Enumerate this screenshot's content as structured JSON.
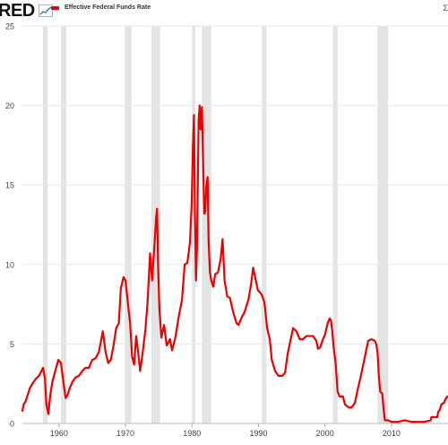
{
  "header": {
    "logo_text": "RED",
    "corner_text": "Σ"
  },
  "colors": {
    "series": "#ee0000",
    "recession": "#e4e4e4",
    "grid": "#e8e8e8",
    "axis_text": "#444444"
  },
  "chart_data": {
    "type": "line",
    "title": "",
    "xlabel": "",
    "ylabel": "",
    "xlim": [
      1954.5,
      2018.5
    ],
    "ylim": [
      0,
      25
    ],
    "yticks": [
      0,
      5,
      10,
      15,
      20,
      25
    ],
    "xticks": [
      1960,
      1970,
      1980,
      1990,
      2000,
      2010
    ],
    "grid": true,
    "legend_placement": "top-left",
    "recessions": [
      [
        1957.6,
        1958.3
      ],
      [
        1960.3,
        1961.1
      ],
      [
        1969.9,
        1970.9
      ],
      [
        1973.9,
        1975.2
      ],
      [
        1980.0,
        1980.5
      ],
      [
        1981.5,
        1982.9
      ],
      [
        1990.5,
        1991.2
      ],
      [
        2001.2,
        2001.9
      ],
      [
        2007.9,
        2009.5
      ]
    ],
    "series": [
      {
        "name": "Effective Federal Funds Rate",
        "points": [
          [
            1954.5,
            0.8
          ],
          [
            1954.7,
            1.2
          ],
          [
            1955.0,
            1.4
          ],
          [
            1955.3,
            1.8
          ],
          [
            1955.6,
            2.2
          ],
          [
            1956.0,
            2.5
          ],
          [
            1956.5,
            2.8
          ],
          [
            1957.0,
            3.0
          ],
          [
            1957.6,
            3.5
          ],
          [
            1957.9,
            2.8
          ],
          [
            1958.1,
            1.2
          ],
          [
            1958.4,
            0.6
          ],
          [
            1958.7,
            1.8
          ],
          [
            1959.0,
            2.6
          ],
          [
            1959.5,
            3.4
          ],
          [
            1959.9,
            4.0
          ],
          [
            1960.3,
            3.8
          ],
          [
            1960.7,
            2.5
          ],
          [
            1961.0,
            1.6
          ],
          [
            1961.3,
            1.8
          ],
          [
            1961.6,
            2.2
          ],
          [
            1962.0,
            2.6
          ],
          [
            1962.5,
            2.9
          ],
          [
            1963.0,
            3.0
          ],
          [
            1963.5,
            3.3
          ],
          [
            1964.0,
            3.5
          ],
          [
            1964.5,
            3.5
          ],
          [
            1965.0,
            4.0
          ],
          [
            1965.5,
            4.1
          ],
          [
            1966.0,
            4.5
          ],
          [
            1966.6,
            5.8
          ],
          [
            1967.0,
            4.5
          ],
          [
            1967.4,
            3.8
          ],
          [
            1967.8,
            4.0
          ],
          [
            1968.2,
            4.9
          ],
          [
            1968.6,
            6.0
          ],
          [
            1969.0,
            6.3
          ],
          [
            1969.3,
            8.5
          ],
          [
            1969.7,
            9.2
          ],
          [
            1970.0,
            9.0
          ],
          [
            1970.3,
            7.8
          ],
          [
            1970.7,
            6.3
          ],
          [
            1971.0,
            4.2
          ],
          [
            1971.3,
            3.7
          ],
          [
            1971.6,
            5.5
          ],
          [
            1971.9,
            4.5
          ],
          [
            1972.2,
            3.3
          ],
          [
            1972.6,
            4.5
          ],
          [
            1973.0,
            5.9
          ],
          [
            1973.3,
            7.5
          ],
          [
            1973.7,
            10.7
          ],
          [
            1974.0,
            9.0
          ],
          [
            1974.4,
            11.5
          ],
          [
            1974.6,
            12.9
          ],
          [
            1974.75,
            13.5
          ],
          [
            1974.9,
            10.0
          ],
          [
            1975.1,
            7.2
          ],
          [
            1975.4,
            5.4
          ],
          [
            1975.8,
            6.2
          ],
          [
            1976.2,
            4.9
          ],
          [
            1976.7,
            5.3
          ],
          [
            1977.0,
            4.6
          ],
          [
            1977.5,
            5.4
          ],
          [
            1978.0,
            6.7
          ],
          [
            1978.5,
            7.8
          ],
          [
            1978.9,
            10.0
          ],
          [
            1979.3,
            10.1
          ],
          [
            1979.7,
            11.4
          ],
          [
            1979.95,
            13.8
          ],
          [
            1980.15,
            17.6
          ],
          [
            1980.3,
            19.4
          ],
          [
            1980.45,
            13.2
          ],
          [
            1980.6,
            9.0
          ],
          [
            1980.75,
            11.0
          ],
          [
            1980.9,
            15.9
          ],
          [
            1981.0,
            19.1
          ],
          [
            1981.15,
            20.0
          ],
          [
            1981.3,
            18.5
          ],
          [
            1981.5,
            19.9
          ],
          [
            1981.7,
            15.9
          ],
          [
            1981.85,
            13.2
          ],
          [
            1982.0,
            13.3
          ],
          [
            1982.15,
            14.9
          ],
          [
            1982.35,
            15.5
          ],
          [
            1982.5,
            11.5
          ],
          [
            1982.7,
            9.5
          ],
          [
            1982.9,
            9.0
          ],
          [
            1983.2,
            8.6
          ],
          [
            1983.5,
            9.4
          ],
          [
            1983.9,
            9.5
          ],
          [
            1984.3,
            10.3
          ],
          [
            1984.6,
            11.6
          ],
          [
            1984.9,
            9.0
          ],
          [
            1985.3,
            8.0
          ],
          [
            1985.7,
            7.9
          ],
          [
            1986.2,
            7.0
          ],
          [
            1986.7,
            6.3
          ],
          [
            1987.0,
            6.2
          ],
          [
            1987.5,
            6.7
          ],
          [
            1987.9,
            7.0
          ],
          [
            1988.5,
            7.8
          ],
          [
            1988.9,
            8.8
          ],
          [
            1989.2,
            9.8
          ],
          [
            1989.5,
            9.2
          ],
          [
            1989.9,
            8.4
          ],
          [
            1990.5,
            8.1
          ],
          [
            1990.9,
            7.6
          ],
          [
            1991.3,
            6.0
          ],
          [
            1991.7,
            5.3
          ],
          [
            1992.0,
            4.0
          ],
          [
            1992.5,
            3.3
          ],
          [
            1993.0,
            3.0
          ],
          [
            1993.6,
            3.0
          ],
          [
            1994.0,
            3.2
          ],
          [
            1994.4,
            4.4
          ],
          [
            1994.8,
            5.2
          ],
          [
            1995.2,
            6.0
          ],
          [
            1995.7,
            5.8
          ],
          [
            1996.2,
            5.3
          ],
          [
            1996.7,
            5.3
          ],
          [
            1997.2,
            5.5
          ],
          [
            1997.7,
            5.5
          ],
          [
            1998.2,
            5.5
          ],
          [
            1998.7,
            5.2
          ],
          [
            1998.95,
            4.7
          ],
          [
            1999.3,
            4.8
          ],
          [
            1999.7,
            5.3
          ],
          [
            2000.0,
            5.6
          ],
          [
            2000.4,
            6.3
          ],
          [
            2000.7,
            6.6
          ],
          [
            2000.9,
            6.5
          ],
          [
            2001.1,
            5.8
          ],
          [
            2001.3,
            4.8
          ],
          [
            2001.6,
            3.8
          ],
          [
            2001.9,
            2.0
          ],
          [
            2002.2,
            1.7
          ],
          [
            2002.7,
            1.7
          ],
          [
            2003.0,
            1.2
          ],
          [
            2003.6,
            1.0
          ],
          [
            2004.0,
            1.0
          ],
          [
            2004.5,
            1.3
          ],
          [
            2004.9,
            2.1
          ],
          [
            2005.3,
            2.8
          ],
          [
            2005.7,
            3.6
          ],
          [
            2006.1,
            4.4
          ],
          [
            2006.5,
            5.2
          ],
          [
            2007.0,
            5.3
          ],
          [
            2007.5,
            5.2
          ],
          [
            2007.7,
            5.0
          ],
          [
            2007.9,
            4.5
          ],
          [
            2008.1,
            3.0
          ],
          [
            2008.3,
            2.0
          ],
          [
            2008.6,
            1.9
          ],
          [
            2008.8,
            1.0
          ],
          [
            2009.0,
            0.2
          ],
          [
            2009.5,
            0.2
          ],
          [
            2010.0,
            0.1
          ],
          [
            2011.0,
            0.1
          ],
          [
            2012.0,
            0.2
          ],
          [
            2013.0,
            0.1
          ],
          [
            2014.0,
            0.1
          ],
          [
            2015.0,
            0.1
          ],
          [
            2015.9,
            0.2
          ],
          [
            2016.0,
            0.4
          ],
          [
            2016.9,
            0.4
          ],
          [
            2017.0,
            0.7
          ],
          [
            2017.3,
            0.9
          ],
          [
            2017.5,
            1.2
          ],
          [
            2017.9,
            1.3
          ],
          [
            2018.1,
            1.5
          ],
          [
            2018.4,
            1.7
          ]
        ]
      }
    ]
  }
}
